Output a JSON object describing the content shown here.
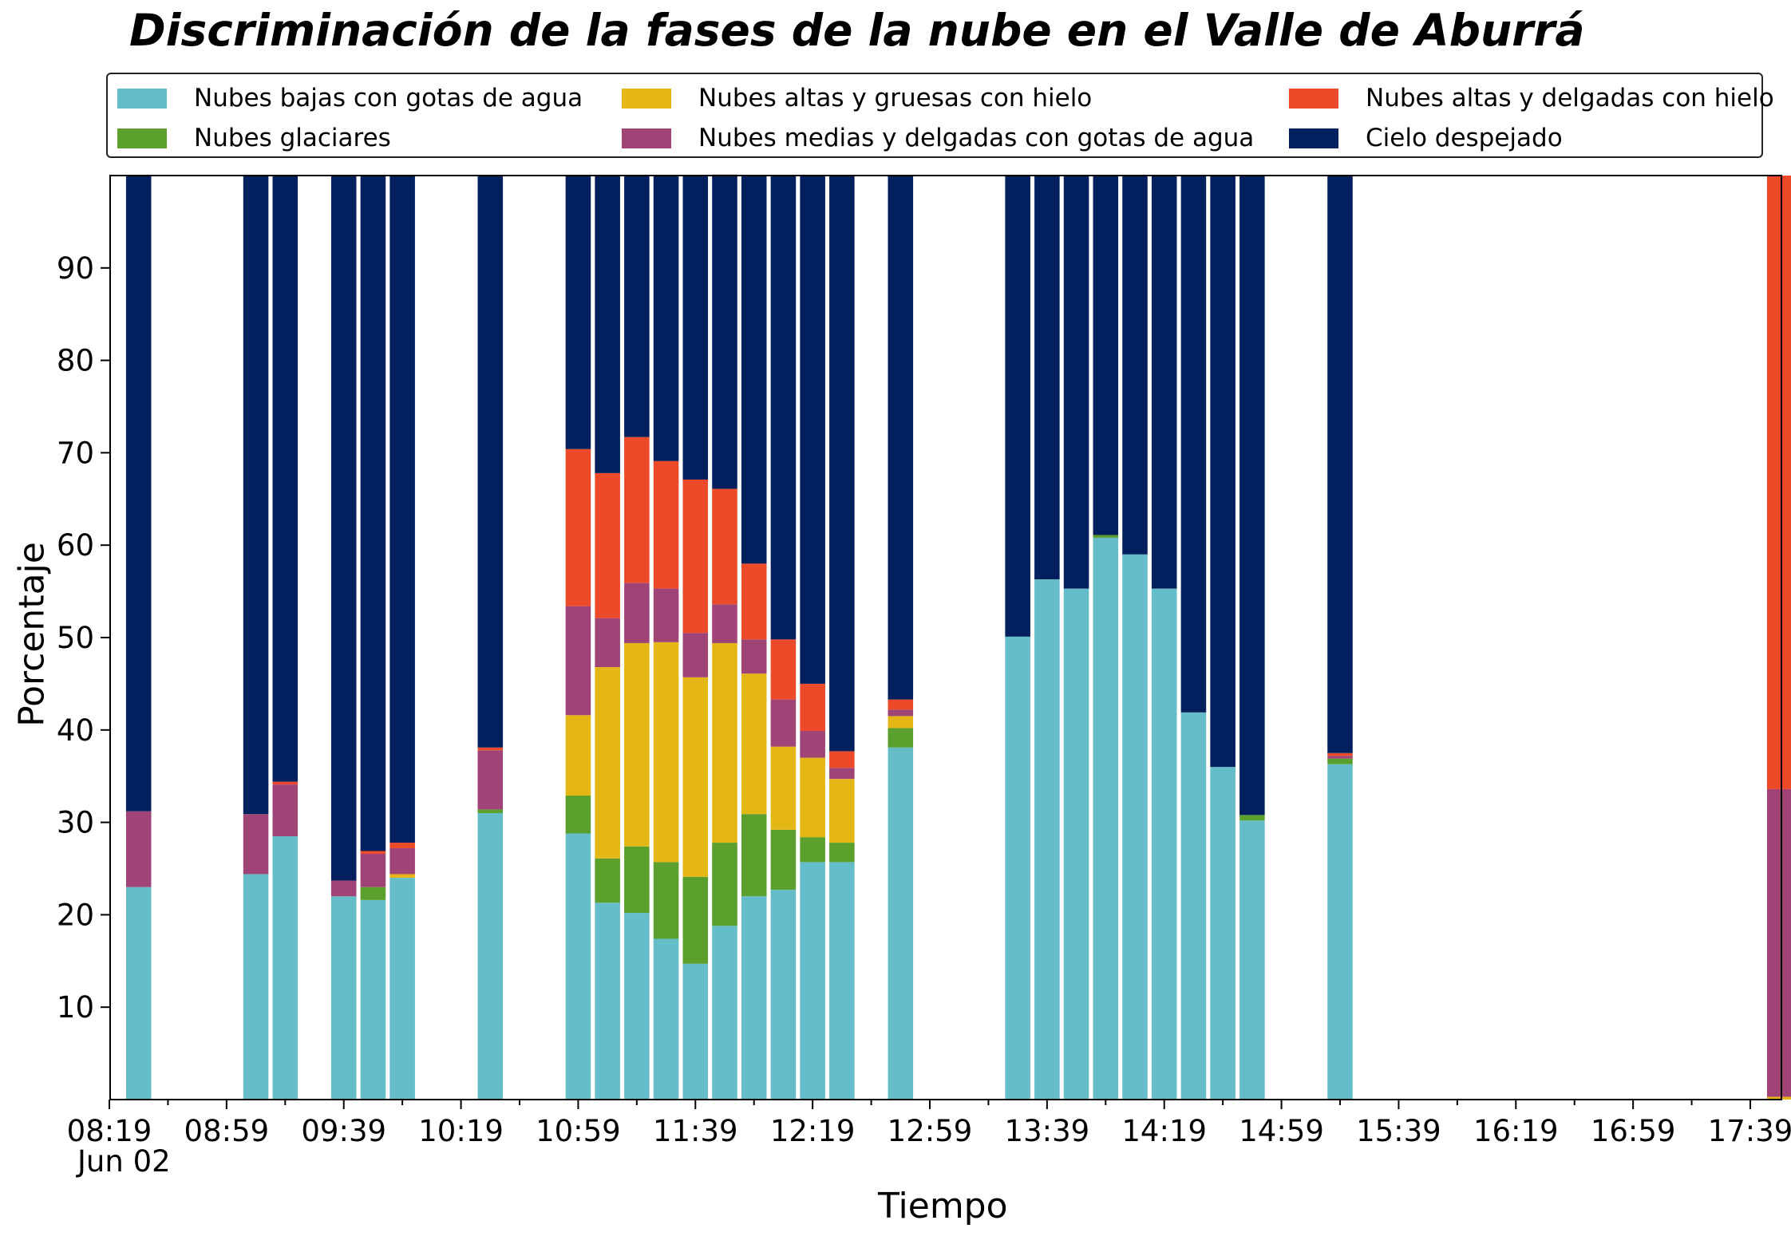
{
  "chart_data": {
    "type": "bar",
    "stacked": true,
    "title": "Discriminación de la fases de la nube en el Valle de Aburrá",
    "xlabel": "Tiempo",
    "ylabel": "Porcentaje",
    "date_label": "Jun 02",
    "ylim": [
      0,
      100
    ],
    "y_ticks": [
      10,
      20,
      30,
      40,
      50,
      60,
      70,
      80,
      90
    ],
    "x_tick_labels": [
      "08:19",
      "08:59",
      "09:39",
      "10:19",
      "10:59",
      "11:39",
      "12:19",
      "12:59",
      "13:39",
      "14:19",
      "14:59",
      "15:39",
      "16:19",
      "16:59",
      "17:39"
    ],
    "legend_position": "top",
    "grid": false,
    "categories": [
      "08:29",
      "09:09",
      "09:19",
      "09:39",
      "09:49",
      "09:59",
      "10:29",
      "10:59",
      "11:09",
      "11:19",
      "11:29",
      "11:39",
      "11:49",
      "11:59",
      "12:09",
      "12:19",
      "12:29",
      "12:49",
      "13:29",
      "13:39",
      "13:49",
      "13:59",
      "14:09",
      "14:19",
      "14:29",
      "14:39",
      "14:49",
      "15:19",
      "17:49"
    ],
    "series": [
      {
        "name": "Nubes bajas con gotas de agua",
        "color": "#65bdc9",
        "values": [
          23,
          24.4,
          28.5,
          22,
          21.6,
          24,
          31,
          28.8,
          21.3,
          20.2,
          17.4,
          14.7,
          18.8,
          22,
          22.7,
          25.7,
          25.7,
          38.1,
          50.1,
          56.3,
          55.3,
          60.8,
          59,
          55.3,
          41.9,
          36,
          30.2,
          36.3,
          0
        ]
      },
      {
        "name": "Nubes glaciares",
        "color": "#5ba02c",
        "values": [
          0,
          0,
          0,
          0,
          1.4,
          0,
          0.4,
          4.1,
          4.8,
          7.2,
          8.3,
          9.4,
          9,
          8.9,
          6.5,
          2.7,
          2.1,
          2.1,
          0,
          0,
          0,
          0.3,
          0,
          0,
          0,
          0,
          0.6,
          0.6,
          0
        ]
      },
      {
        "name": "Nubes altas y gruesas con hielo",
        "color": "#e5b716",
        "values": [
          0,
          0,
          0,
          0,
          0,
          0.4,
          0,
          8.7,
          20.7,
          22,
          23.8,
          21.6,
          21.6,
          15.2,
          9,
          8.6,
          6.9,
          1.3,
          0,
          0,
          0,
          0,
          0,
          0,
          0,
          0,
          0,
          0,
          0.3
        ]
      },
      {
        "name": "Nubes medias y delgadas con gotas de agua",
        "color": "#a04478",
        "values": [
          8.2,
          6.5,
          5.6,
          1.7,
          3.6,
          2.8,
          6.4,
          11.8,
          5.3,
          6.5,
          5.8,
          4.8,
          4.2,
          3.7,
          5.1,
          2.9,
          1.2,
          0.7,
          0,
          0,
          0,
          0,
          0,
          0,
          0,
          0,
          0,
          0.3,
          33.3
        ]
      },
      {
        "name": "Nubes altas y delgadas con hielo",
        "color": "#ed4a2a",
        "values": [
          0,
          0,
          0.3,
          0,
          0.3,
          0.6,
          0.3,
          17,
          15.7,
          15.8,
          13.8,
          16.6,
          12.5,
          8.2,
          6.5,
          5.1,
          1.8,
          1.1,
          0,
          0,
          0,
          0,
          0,
          0,
          0,
          0,
          0,
          0.3,
          66.4
        ]
      },
      {
        "name": "Cielo despejado",
        "color": "#03205e",
        "values": [
          68.8,
          69.1,
          65.6,
          76.3,
          73.1,
          72.2,
          61.9,
          29.6,
          32.2,
          28.3,
          30.9,
          32.9,
          34,
          42,
          50.2,
          55,
          62.3,
          56.7,
          49.9,
          43.7,
          44.7,
          38.9,
          41,
          44.7,
          58.1,
          64,
          69.2,
          62.5,
          0
        ]
      }
    ]
  }
}
